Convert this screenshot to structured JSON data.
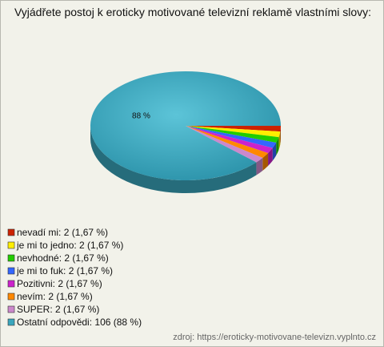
{
  "chart_data": {
    "type": "pie3d",
    "title": "Vyjádřete postoj k eroticky motivované televizní reklamě vlastními slovy:",
    "categories": [
      "nevadí mi: 2 (1,67 %)",
      "je mi to jedno: 2 (1,67 %)",
      "nevhodné: 2 (1,67 %)",
      "je mi to fuk: 2 (1,67 %)",
      "Pozitivni: 2 (1,67 %)",
      "nevím: 2 (1,67 %)",
      "SUPER: 2 (1,67 %)",
      "Ostatní odpovědi: 106 (88 %)"
    ],
    "values": [
      2,
      2,
      2,
      2,
      2,
      2,
      2,
      106
    ],
    "value_labels": [
      null,
      null,
      null,
      null,
      null,
      null,
      null,
      "88 %"
    ],
    "colors": [
      "#cc2200",
      "#ffee00",
      "#22cc00",
      "#3366ff",
      "#cc22cc",
      "#ff8800",
      "#cc88cc",
      "#3aa6bd"
    ],
    "source": "zdroj: https://eroticky-motivovane-televizn.vyplnto.cz"
  }
}
